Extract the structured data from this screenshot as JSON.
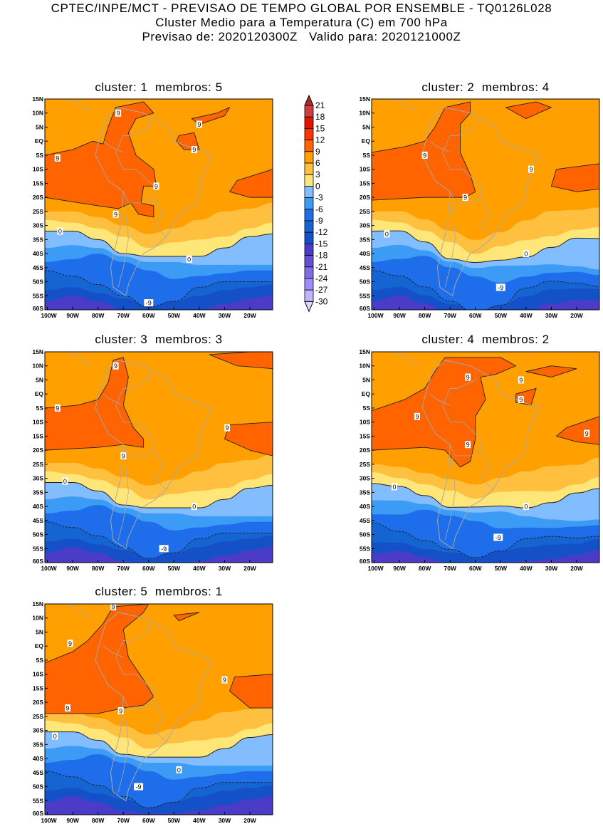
{
  "header": {
    "line1": "CPTEC/INPE/MCT - PREVISAO DE TEMPO GLOBAL POR ENSEMBLE - TQ0126L028",
    "line2": "Cluster Medio para a Temperatura (C) em 700 hPa",
    "line3": "Previsao de: 2020120300Z   Valido para: 2020121000Z"
  },
  "axes": {
    "lat_labels": [
      "15N",
      "10N",
      "5N",
      "EQ",
      "5S",
      "10S",
      "15S",
      "20S",
      "25S",
      "30S",
      "35S",
      "40S",
      "45S",
      "50S",
      "55S",
      "60S"
    ],
    "lon_labels": [
      "100W",
      "90W",
      "80W",
      "70W",
      "60W",
      "50W",
      "40W",
      "30W",
      "20W"
    ]
  },
  "colorbar": {
    "labels": [
      "21",
      "18",
      "15",
      "12",
      "9",
      "6",
      "3",
      "0",
      "-3",
      "-6",
      "-9",
      "-12",
      "-15",
      "-18",
      "-21",
      "-24",
      "-27",
      "-30"
    ],
    "colors": [
      "#c84040",
      "#e01400",
      "#ff3200",
      "#ff6400",
      "#ffa000",
      "#ffc040",
      "#ffe678",
      "#82beff",
      "#3c9bf5",
      "#1e6eeb",
      "#1464d2",
      "#1450c8",
      "#4b3cc8",
      "#6450d2",
      "#7d6ee6",
      "#a08cff",
      "#bfb4ff"
    ],
    "over_color": "#b42828",
    "under_color": "#dcd7ff"
  },
  "panels": [
    {
      "title": "cluster: 1  membros: 5",
      "contour_labels": [
        "9",
        "9",
        "9",
        "9",
        "9",
        "9",
        "0",
        "0",
        "-9"
      ]
    },
    {
      "title": "cluster: 2  membros: 4",
      "contour_labels": [
        "9",
        "9",
        "9",
        "0",
        "0",
        "-9"
      ]
    },
    {
      "title": "cluster: 3  membros: 3",
      "contour_labels": [
        "9",
        "9",
        "9",
        "9",
        "0",
        "0",
        "-9"
      ]
    },
    {
      "title": "cluster: 4  membros: 2",
      "contour_labels": [
        "9",
        "9",
        "9",
        "9",
        "9",
        "9",
        "0",
        "0",
        "-9"
      ]
    },
    {
      "title": "cluster: 5  membros: 1",
      "contour_labels": [
        "9",
        "9",
        "9",
        "9",
        "9",
        "0",
        "0",
        "-9"
      ]
    }
  ]
}
